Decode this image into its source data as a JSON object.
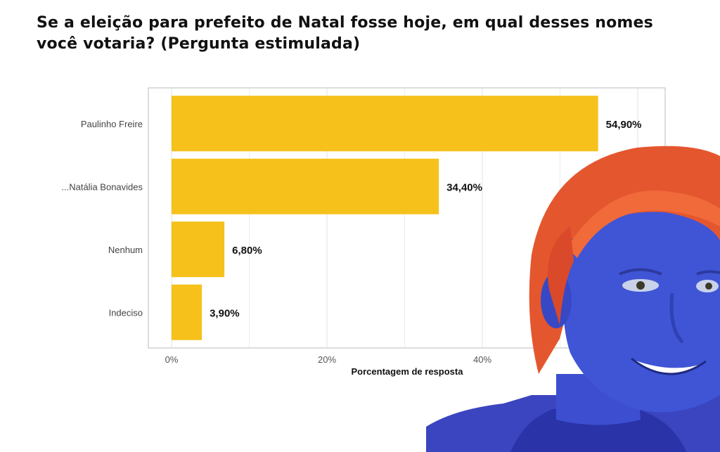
{
  "title": "Se a eleição para prefeito de Natal fosse hoje, em qual desses nomes você votaria? (Pergunta estimulada)",
  "colors": {
    "bar": "#F5C11A",
    "grid": "#e6e6e6",
    "panel_border": "#bbbbbb"
  },
  "photo": {
    "description_icon": "person-photo-icon"
  },
  "chart_data": {
    "type": "bar",
    "orientation": "horizontal",
    "title": "Se a eleição para prefeito de Natal fosse hoje, em qual desses nomes você votaria? (Pergunta estimulada)",
    "categories": [
      "Paulinho Freire",
      "...Natália Bonavides",
      "Nenhum",
      "Indeciso"
    ],
    "values": [
      54.9,
      34.4,
      6.8,
      3.9
    ],
    "value_labels": [
      "54,90%",
      "34,40%",
      "6,80%",
      "3,90%"
    ],
    "xlabel": "Porcentagem de resposta",
    "ylabel": "",
    "xlim": [
      0,
      60
    ],
    "xticks": [
      0,
      20,
      40
    ],
    "xtick_labels": [
      "0%",
      "20%",
      "40%"
    ],
    "grid": true,
    "legend": "none"
  }
}
